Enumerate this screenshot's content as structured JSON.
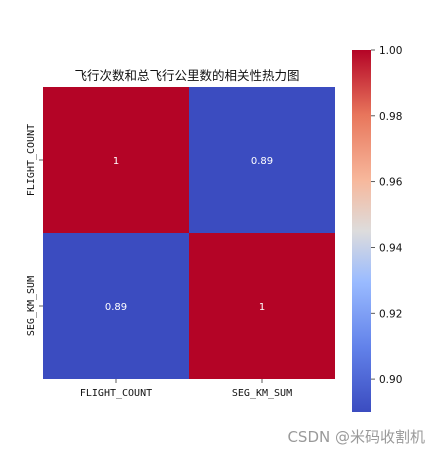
{
  "chart_data": {
    "type": "heatmap",
    "title": "飞行次数和总飞行公里数的相关性热力图",
    "rows": [
      "FLIGHT_COUNT",
      "SEG_KM_SUM"
    ],
    "cols": [
      "FLIGHT_COUNT",
      "SEG_KM_SUM"
    ],
    "values": [
      [
        1,
        0.89
      ],
      [
        0.89,
        1
      ]
    ],
    "cell_labels": [
      [
        "1",
        "0.89"
      ],
      [
        "0.89",
        "1"
      ]
    ],
    "colormap": "coolwarm",
    "colorbar": {
      "range": [
        0.89,
        1.0
      ],
      "ticks": [
        0.9,
        0.92,
        0.94,
        0.96,
        0.98,
        1.0
      ],
      "tick_labels": [
        "0.90",
        "0.92",
        "0.94",
        "0.96",
        "0.98",
        "1.00"
      ]
    },
    "colors": {
      "high": "#b40426",
      "low": "#3b4cc0"
    }
  },
  "watermark": "CSDN @米码收割机"
}
